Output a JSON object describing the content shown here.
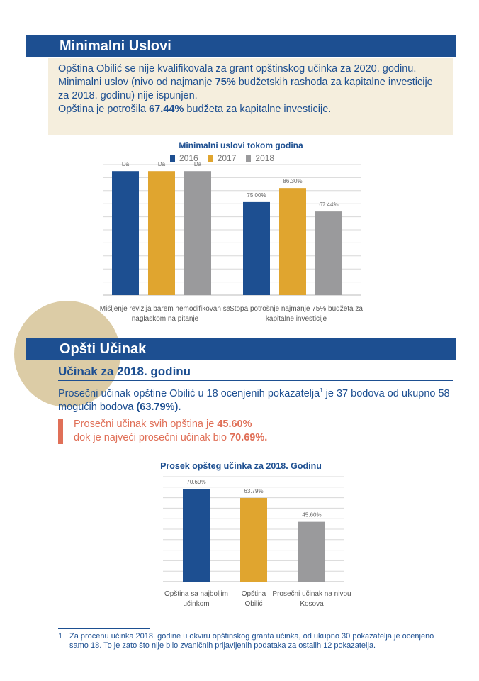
{
  "section1": {
    "title": "Minimalni Uslovi",
    "lines": [
      {
        "text": "Opština Obilić se nije kvalifikovala za grant opštinskog učinka za 2020. godinu."
      },
      {
        "before": "Minimalni uslov (nivo od najmanje ",
        "bold": "75%",
        "after": " budžetskih rashoda za kapitalne investicije za 2018. godinu) nije ispunjen."
      },
      {
        "before": "Opština je potrošila ",
        "bold": "67.44%",
        "after": " budžeta za kapitalne investicije."
      }
    ]
  },
  "chart1": {
    "title": "Minimalni uslovi tokom godina",
    "legend": [
      "2016",
      "2017",
      "2018"
    ]
  },
  "section2": {
    "title": "Opšti Učinak",
    "subtitle": "Učinak za 2018. godinu",
    "para_part1": "Prosečni učinak opštine Obilić u 18 ocenjenih pokazatelja",
    "footnote_ref": "1",
    "para_part2": " je 37 bodova od ukupno 58 mogućih bodova ",
    "para_bold": "(63.79%).",
    "avg_line1_text": "Prosečni učinak svih opština je ",
    "avg_line1_bold": "45.60%",
    "avg_line2_text": "dok je najveći prosečni učinak bio ",
    "avg_line2_bold": "70.69%."
  },
  "chart2": {
    "title": "Prosek opšteg učinka za 2018. Godinu"
  },
  "footnote": {
    "number": "1",
    "text": "Za procenu učinka 2018. godine u okviru opštinskog granta učinka, od ukupno 30 pokazatelja je ocenjeno samo 18. To je zato što nije bilo zvaničnih prijavljenih podataka za ostalih 12 pokazatelja."
  },
  "colors": {
    "navy": "#1d4f91",
    "gold": "#e0a52f",
    "gray": "#9a9a9c",
    "coral": "#e07058",
    "beige": "#f5eedd"
  },
  "chart_data": [
    {
      "type": "bar",
      "title": "Minimalni uslovi tokom godina",
      "categories": [
        [
          "Mišljenje revizija barem nemodifikovan sa",
          "naglaskom na pitanje"
        ],
        [
          "Stopa potrošnje najmanje 75% budžeta za",
          "kapitalne investicije"
        ]
      ],
      "series": [
        {
          "name": "2016",
          "values": [
            100,
            75.0
          ],
          "labels": [
            "Da",
            "75.00%"
          ]
        },
        {
          "name": "2017",
          "values": [
            100,
            86.3
          ],
          "labels": [
            "Da",
            "86.30%"
          ]
        },
        {
          "name": "2018",
          "values": [
            100,
            67.44
          ],
          "labels": [
            "Da",
            "67.44%"
          ]
        }
      ],
      "ylim": [
        0,
        100
      ],
      "grid": true,
      "legend_position": "top"
    },
    {
      "type": "bar",
      "title": "Prosek opšteg učinka za 2018. Godinu",
      "categories": [
        [
          "Opština sa najboljim",
          "učinkom"
        ],
        [
          "Opština",
          "Obilić"
        ],
        [
          "Prosečni učinak na nivou",
          "Kosova"
        ]
      ],
      "values": [
        70.69,
        63.79,
        45.6
      ],
      "labels": [
        "70.69%",
        "63.79%",
        "45.60%"
      ],
      "ylim": [
        0,
        80
      ],
      "grid": true
    }
  ]
}
